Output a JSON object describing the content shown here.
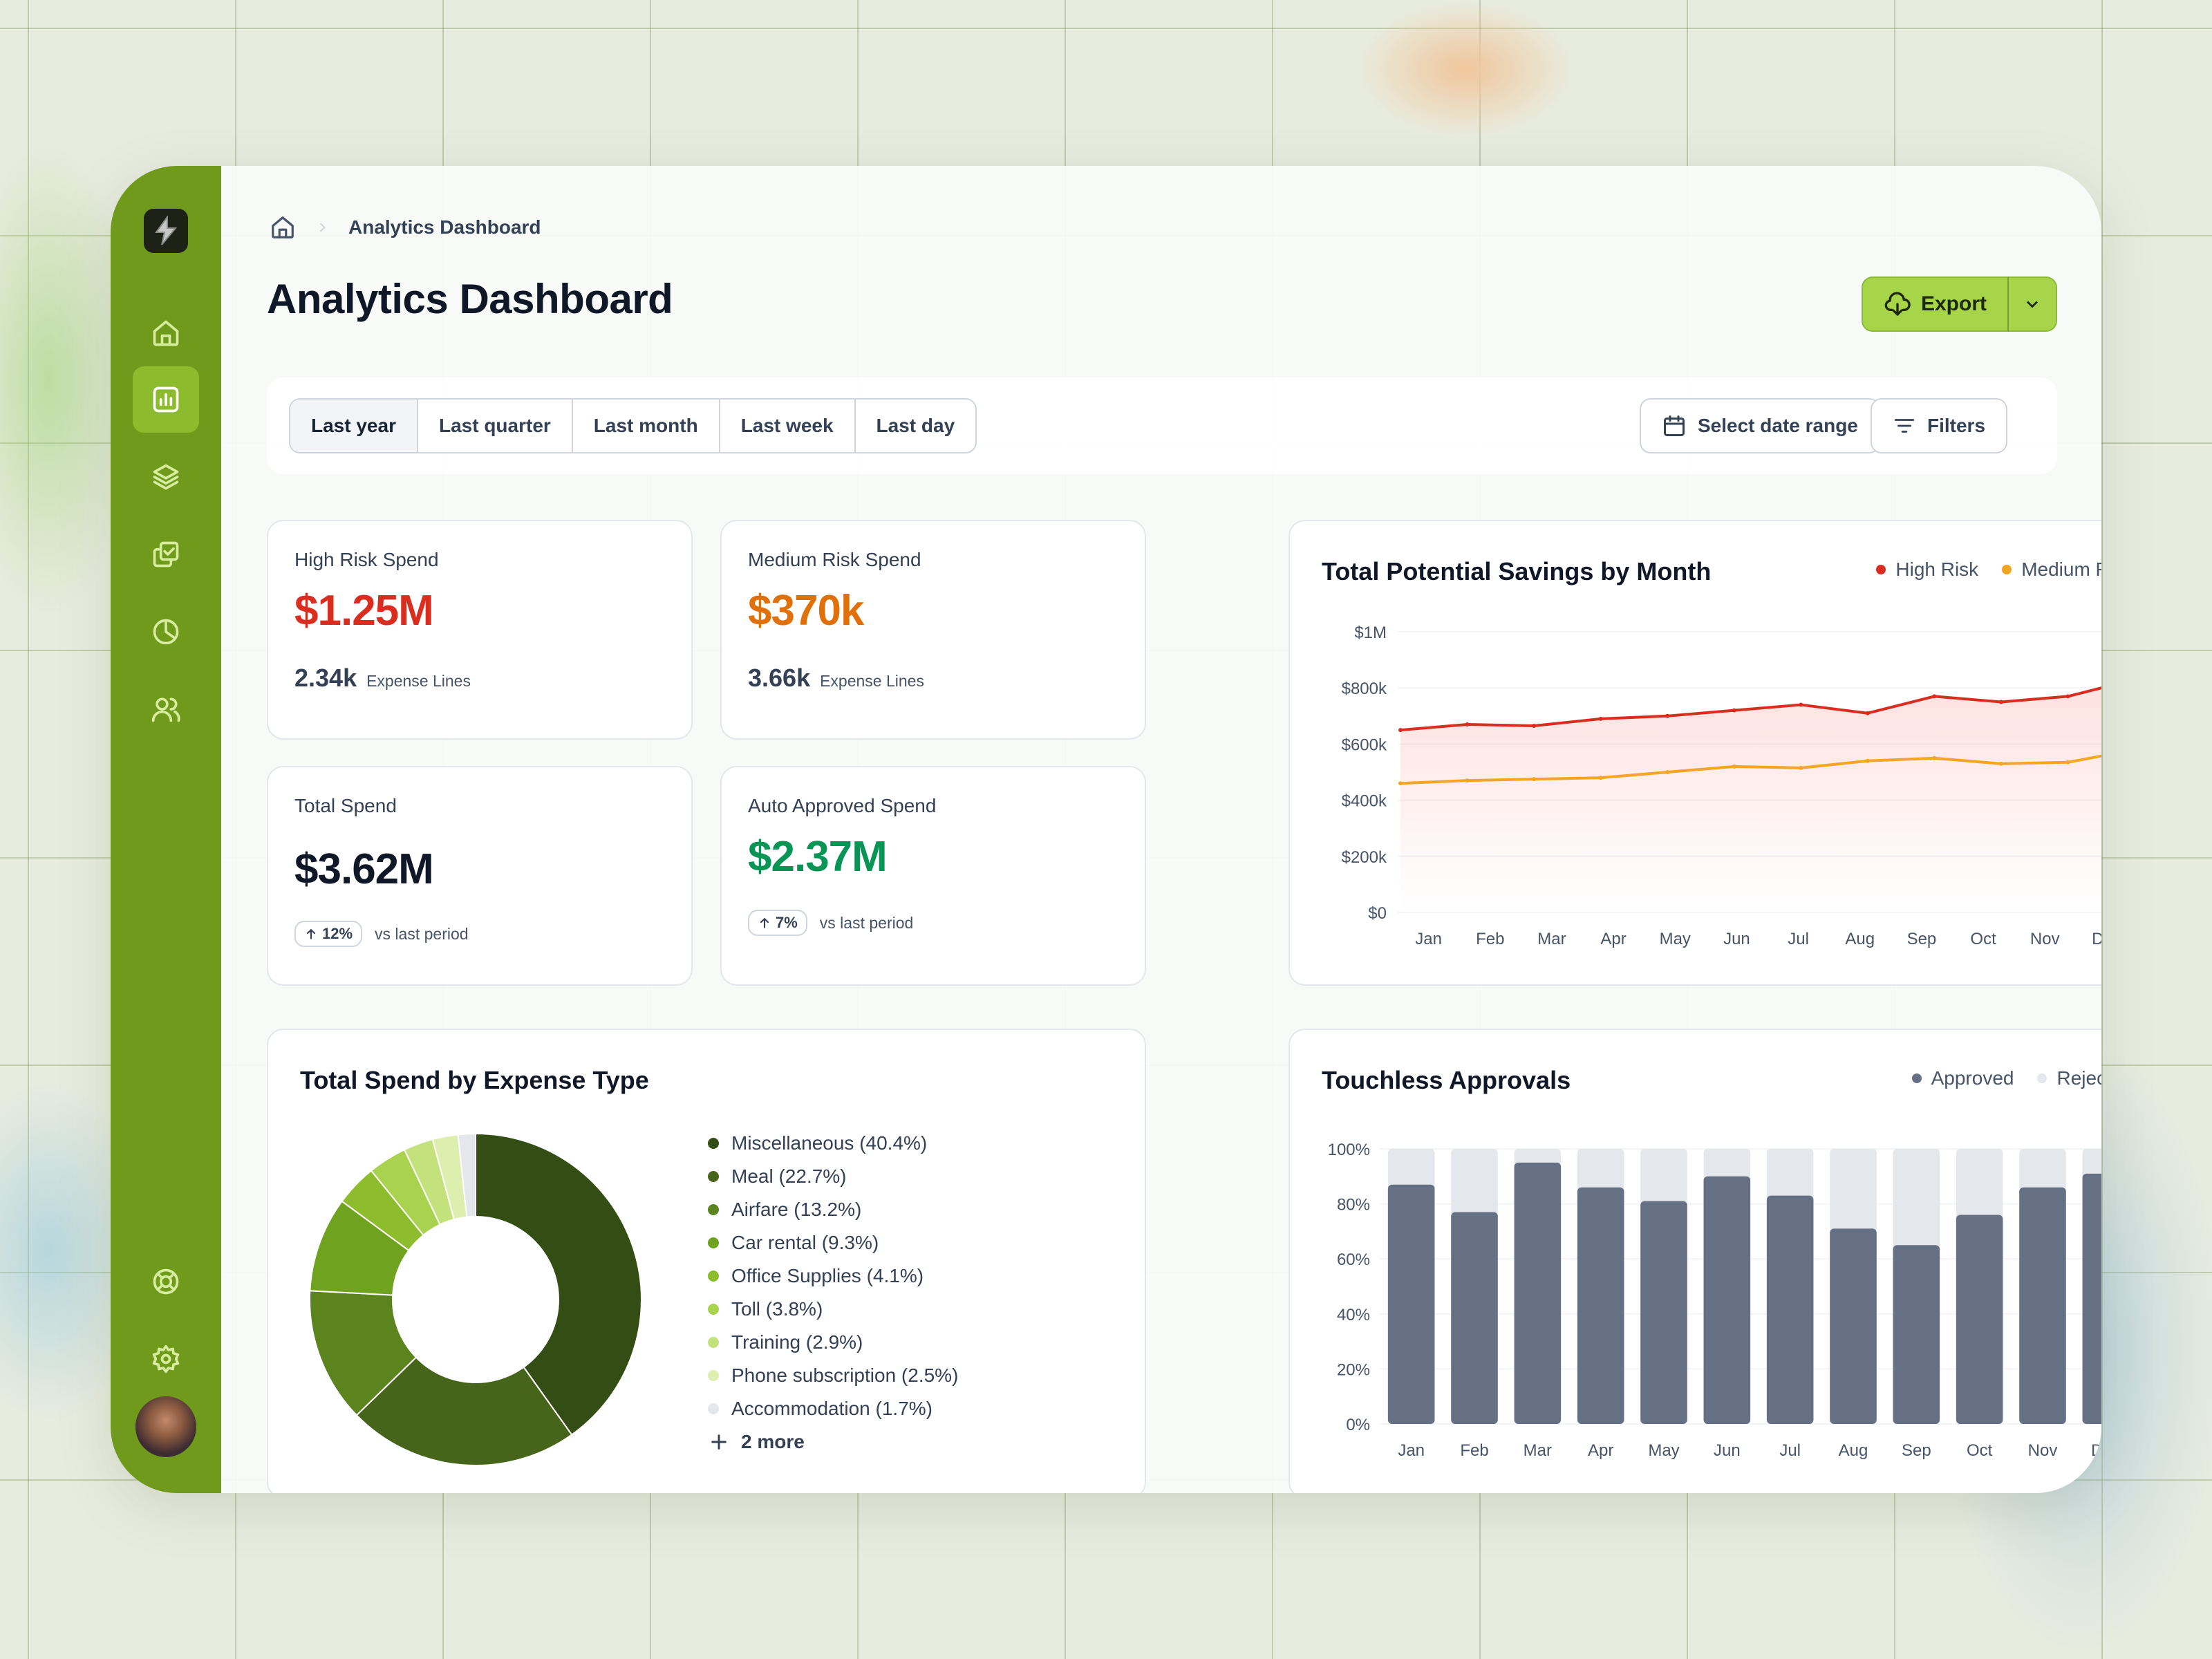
{
  "app": {
    "breadcrumb": {
      "current": "Analytics Dashboard"
    },
    "title": "Analytics Dashboard",
    "export_label": "Export"
  },
  "sidebar": {
    "items": [
      {
        "icon": "home-icon",
        "active": false
      },
      {
        "icon": "bar-chart-icon",
        "active": true
      },
      {
        "icon": "layers-icon",
        "active": false
      },
      {
        "icon": "check-copy-icon",
        "active": false
      },
      {
        "icon": "pie-chart-icon",
        "active": false
      },
      {
        "icon": "users-icon",
        "active": false
      }
    ],
    "bottom": [
      {
        "icon": "life-buoy-icon"
      },
      {
        "icon": "settings-icon"
      }
    ]
  },
  "filters": {
    "ranges": [
      "Last year",
      "Last quarter",
      "Last month",
      "Last week",
      "Last day"
    ],
    "active_range": "Last year",
    "date_range_label": "Select date range",
    "filters_label": "Filters"
  },
  "kpis": {
    "high_risk": {
      "label": "High Risk Spend",
      "value": "$1.25M",
      "sub_num": "2.34k",
      "sub_txt": "Expense Lines",
      "color": "#d92d20"
    },
    "medium_risk": {
      "label": "Medium Risk Spend",
      "value": "$370k",
      "sub_num": "3.66k",
      "sub_txt": "Expense Lines",
      "color": "#e0700a"
    },
    "total": {
      "label": "Total Spend",
      "value": "$3.62M",
      "delta": "12%",
      "delta_txt": "vs last period",
      "color": "#101828"
    },
    "auto": {
      "label": "Auto Approved Spend",
      "value": "$2.37M",
      "delta": "7%",
      "delta_txt": "vs last period",
      "color": "#079455"
    }
  },
  "savings": {
    "title": "Total Potential Savings by Month",
    "legend": [
      {
        "name": "High Risk",
        "color": "#d92d20"
      },
      {
        "name": "Medium Risk",
        "color": "#f5a524"
      }
    ]
  },
  "expense": {
    "title": "Total Spend by Expense Type",
    "more": "2 more"
  },
  "touchless": {
    "title": "Touchless Approvals",
    "legend": [
      {
        "name": "Approved",
        "color": "#667085"
      },
      {
        "name": "Rejected",
        "color": "#e4e7ec"
      }
    ]
  },
  "chart_data": [
    {
      "type": "line",
      "title": "Total Potential Savings by Month",
      "categories": [
        "Jan",
        "Feb",
        "Mar",
        "Apr",
        "May",
        "Jun",
        "Jul",
        "Aug",
        "Sep",
        "Oct",
        "Nov",
        "Dec"
      ],
      "y_ticks": [
        "$0",
        "$200k",
        "$400k",
        "$600k",
        "$800k",
        "$1M"
      ],
      "ylim": [
        0,
        1000000
      ],
      "grid": true,
      "legend": "top-right",
      "series": [
        {
          "name": "High Risk",
          "color": "#d92d20",
          "values": [
            650000,
            670000,
            665000,
            690000,
            700000,
            720000,
            740000,
            710000,
            770000,
            750000,
            770000,
            830000
          ]
        },
        {
          "name": "Medium Risk",
          "color": "#f5a524",
          "values": [
            460000,
            470000,
            475000,
            480000,
            500000,
            520000,
            515000,
            540000,
            550000,
            530000,
            535000,
            580000
          ]
        }
      ]
    },
    {
      "type": "pie",
      "title": "Total Spend by Expense Type",
      "slices": [
        {
          "label": "Miscellaneous (40.4%)",
          "value": 40.4,
          "color": "#344d14"
        },
        {
          "label": "Meal (22.7%)",
          "value": 22.7,
          "color": "#47651a"
        },
        {
          "label": "Airfare (13.2%)",
          "value": 13.2,
          "color": "#5c841e"
        },
        {
          "label": "Car rental (9.3%)",
          "value": 9.3,
          "color": "#6fa21f"
        },
        {
          "label": "Office Supplies (4.1%)",
          "value": 4.1,
          "color": "#8dbc2c"
        },
        {
          "label": "Toll (3.8%)",
          "value": 3.8,
          "color": "#a9d34e"
        },
        {
          "label": "Training (2.9%)",
          "value": 2.9,
          "color": "#c3e27b"
        },
        {
          "label": "Phone subscription (2.5%)",
          "value": 2.5,
          "color": "#dcefae"
        },
        {
          "label": "Accommodation (1.7%)",
          "value": 1.7,
          "color": "#e4e7ec"
        }
      ]
    },
    {
      "type": "bar",
      "title": "Touchless Approvals",
      "categories": [
        "Jan",
        "Feb",
        "Mar",
        "Apr",
        "May",
        "Jun",
        "Jul",
        "Aug",
        "Sep",
        "Oct",
        "Nov",
        "Dec"
      ],
      "y_ticks": [
        "0%",
        "20%",
        "40%",
        "60%",
        "80%",
        "100%"
      ],
      "ylim": [
        0,
        100
      ],
      "grid": true,
      "legend": "top-right",
      "series": [
        {
          "name": "Approved",
          "color": "#667085",
          "values": [
            87,
            77,
            95,
            86,
            81,
            90,
            83,
            71,
            65,
            76,
            86,
            91
          ]
        },
        {
          "name": "Rejected",
          "color": "#e4e7ec",
          "values": [
            13,
            23,
            5,
            14,
            19,
            10,
            17,
            29,
            35,
            24,
            14,
            9
          ]
        }
      ]
    }
  ]
}
